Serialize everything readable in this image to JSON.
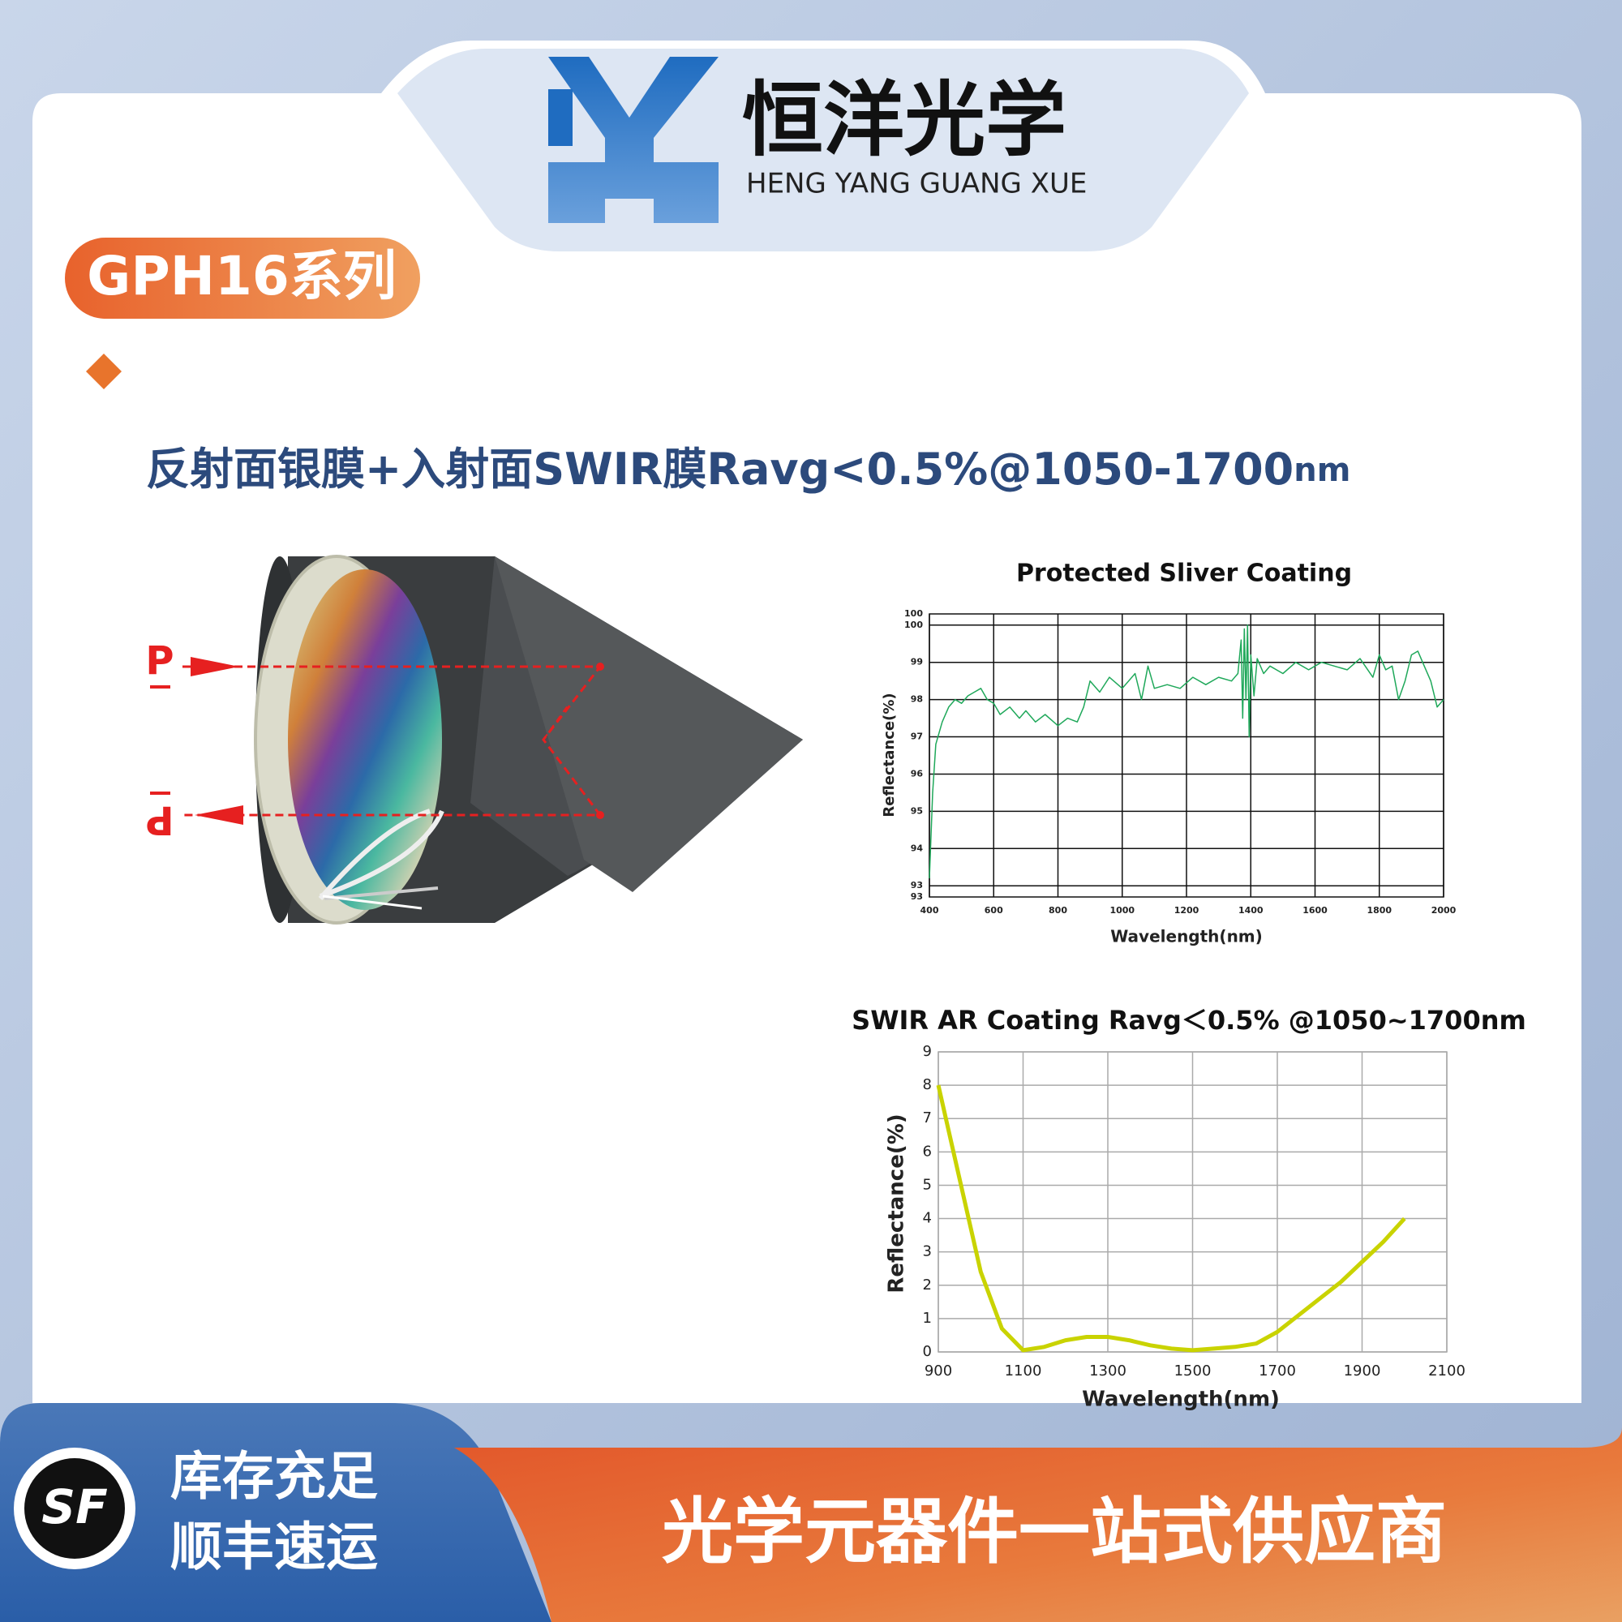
{
  "header": {
    "brand_cn": "恒洋光学",
    "brand_en": "HENG YANG GUANG XUE"
  },
  "badge": "GPH16系列",
  "feature": {
    "text": "反射面银膜+入射面SWIR膜Ravg<0.5%@1050-1700",
    "unit": "nm"
  },
  "diagram": {
    "labels": [
      "P",
      "P"
    ]
  },
  "chart_data": [
    {
      "type": "line",
      "title": "Protected Sliver Coating",
      "x_label": "Wavelength(nm)",
      "y_label": "Reflectance(%)",
      "color": "#1fa85a",
      "grid": true,
      "xlim": [
        400,
        2000
      ],
      "xticks": [
        400,
        600,
        800,
        1000,
        1200,
        1400,
        1600,
        1800,
        2000
      ],
      "ylim": [
        92.7,
        100.3
      ],
      "yticks": [
        {
          "value": 92.7,
          "label": "93"
        },
        93,
        94,
        95,
        96,
        97,
        98,
        99,
        100,
        {
          "value": 100.3,
          "label": "100"
        }
      ],
      "x": [
        400,
        410,
        420,
        440,
        460,
        480,
        500,
        520,
        540,
        560,
        580,
        600,
        620,
        650,
        680,
        700,
        730,
        760,
        800,
        830,
        860,
        880,
        900,
        930,
        960,
        1000,
        1040,
        1060,
        1080,
        1100,
        1140,
        1180,
        1220,
        1260,
        1300,
        1340,
        1360,
        1370,
        1375,
        1380,
        1385,
        1390,
        1395,
        1400,
        1410,
        1420,
        1440,
        1460,
        1500,
        1540,
        1580,
        1620,
        1660,
        1700,
        1740,
        1780,
        1800,
        1820,
        1840,
        1860,
        1880,
        1900,
        1920,
        1940,
        1960,
        1980,
        2000
      ],
      "values": [
        93.2,
        95.5,
        96.8,
        97.4,
        97.8,
        98.0,
        97.9,
        98.1,
        98.2,
        98.3,
        98.0,
        97.9,
        97.6,
        97.8,
        97.5,
        97.7,
        97.4,
        97.6,
        97.3,
        97.5,
        97.4,
        97.8,
        98.5,
        98.2,
        98.6,
        98.3,
        98.7,
        98.0,
        98.9,
        98.3,
        98.4,
        98.3,
        98.6,
        98.4,
        98.6,
        98.5,
        98.7,
        99.6,
        97.5,
        99.9,
        98.0,
        100.0,
        97.0,
        99.2,
        98.1,
        99.1,
        98.7,
        98.9,
        98.7,
        99.0,
        98.8,
        99.0,
        98.9,
        98.8,
        99.1,
        98.6,
        99.2,
        98.8,
        98.9,
        98.0,
        98.5,
        99.2,
        99.3,
        98.9,
        98.5,
        97.8,
        98.0
      ]
    },
    {
      "type": "line",
      "title": "SWIR AR Coating Ravg＜0.5% @1050~1700nm",
      "x_label": "Wavelength(nm)",
      "y_label": "Reflectance(%)",
      "color": "#c9d300",
      "grid": true,
      "xlim": [
        900,
        2100
      ],
      "xticks": [
        900,
        1100,
        1300,
        1500,
        1700,
        1900,
        2100
      ],
      "ylim": [
        0,
        9
      ],
      "yticks": [
        0,
        1,
        2,
        3,
        4,
        5,
        6,
        7,
        8,
        9
      ],
      "x": [
        900,
        950,
        1000,
        1050,
        1100,
        1150,
        1200,
        1250,
        1300,
        1350,
        1400,
        1450,
        1500,
        1550,
        1600,
        1650,
        1700,
        1750,
        1800,
        1850,
        1900,
        1950,
        2000
      ],
      "values": [
        8.0,
        5.2,
        2.4,
        0.7,
        0.05,
        0.15,
        0.35,
        0.45,
        0.45,
        0.35,
        0.2,
        0.1,
        0.05,
        0.1,
        0.15,
        0.25,
        0.6,
        1.1,
        1.6,
        2.1,
        2.7,
        3.3,
        4.0
      ]
    }
  ],
  "footer": {
    "left": [
      "库存充足",
      "顺丰速运"
    ],
    "logo": "SF",
    "slogan": "光学元器件一站式供应商"
  }
}
